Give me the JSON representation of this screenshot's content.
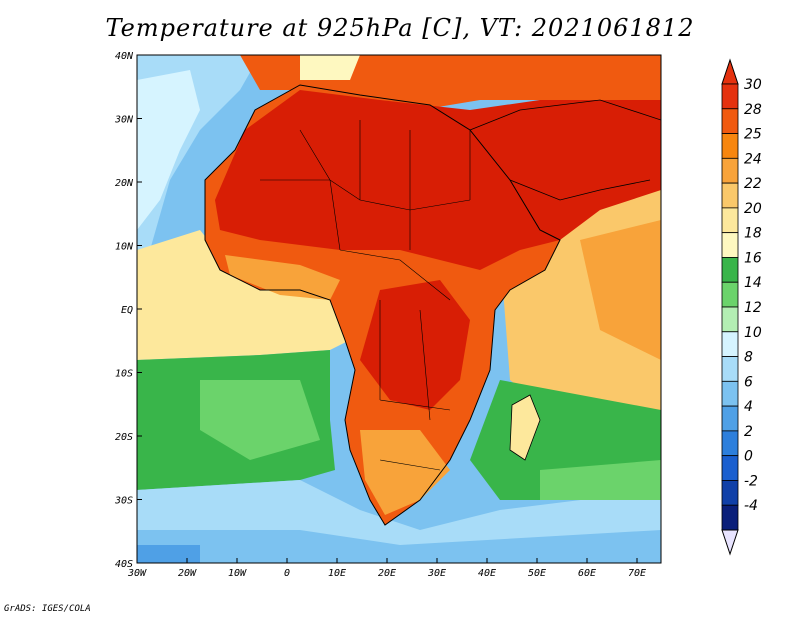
{
  "title": "Temperature at 925hPa [C], VT: 2021061812",
  "credit": "GrADS: IGES/COLA",
  "lat_labels": [
    "40N",
    "30N",
    "20N",
    "10N",
    "EQ",
    "10S",
    "20S",
    "30S",
    "40S"
  ],
  "lon_labels": [
    "30W",
    "20W",
    "10W",
    "0",
    "10E",
    "20E",
    "30E",
    "40E",
    "50E",
    "60E",
    "70E"
  ],
  "colorbar": {
    "labels": [
      "30",
      "28",
      "25",
      "24",
      "22",
      "20",
      "18",
      "16",
      "14",
      "12",
      "10",
      "8",
      "6",
      "4",
      "2",
      "0",
      "-2",
      "-4"
    ],
    "colors": [
      "#e5320f",
      "#f05a10",
      "#f7860f",
      "#f8a33a",
      "#fac86a",
      "#fde89c",
      "#fef8c0",
      "#39b54a",
      "#6bd36b",
      "#b3eeb3",
      "#d6f4ff",
      "#a8dcf8",
      "#7cc2f0",
      "#4fa0e6",
      "#2d7fdc",
      "#1a5fcf",
      "#1040a8",
      "#0a1f7a"
    ]
  },
  "colors": {
    "hot": "#d81e05",
    "warm": "#f05a10",
    "ocean_warm": "#fde89c",
    "ocean_cool": "#39b54a",
    "ocean_cold": "#7cc2f0"
  }
}
